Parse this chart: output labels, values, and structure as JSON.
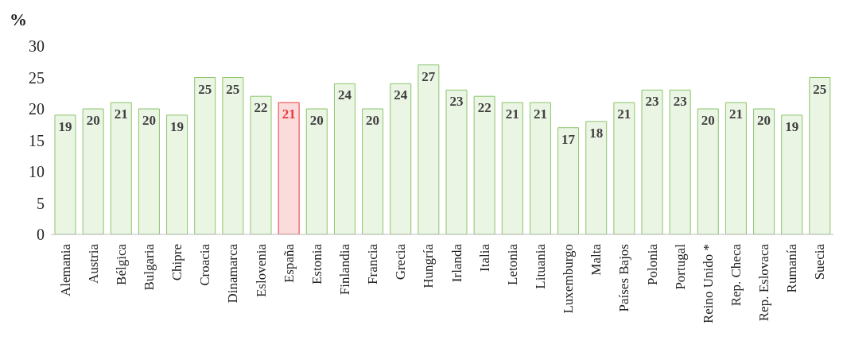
{
  "chart_data": {
    "type": "bar",
    "ylabel": "%",
    "categories": [
      "Alemania",
      "Austria",
      "Bélgica",
      "Bulgaria",
      "Chipre",
      "Croacia",
      "Dinamarca",
      "Eslovenia",
      "España",
      "Estonia",
      "Finlandia",
      "Francia",
      "Grecia",
      "Hungría",
      "Irlanda",
      "Italia",
      "Letonia",
      "Lituania",
      "Luxemburgo",
      "Malta",
      "Países Bajos",
      "Polonia",
      "Portugal",
      "Reino Unido *",
      "Rep. Checa",
      "Rep. Eslovaca",
      "Rumanía",
      "Suecia"
    ],
    "values": [
      19,
      20,
      21,
      20,
      19,
      25,
      25,
      22,
      21,
      20,
      24,
      20,
      24,
      27,
      23,
      22,
      21,
      21,
      17,
      18,
      21,
      23,
      23,
      20,
      21,
      20,
      19,
      25
    ],
    "color": "#8cc56b",
    "colors": [
      "#8cc56b",
      "#8cc56b",
      "#8cc56b",
      "#8cc56b",
      "#8cc56b",
      "#8cc56b",
      "#8cc56b",
      "#8cc56b",
      "#e8393a",
      "#8cc56b",
      "#8cc56b",
      "#8cc56b",
      "#8cc56b",
      "#8cc56b",
      "#8cc56b",
      "#8cc56b",
      "#8cc56b",
      "#8cc56b",
      "#8cc56b",
      "#8cc56b",
      "#8cc56b",
      "#8cc56b",
      "#8cc56b",
      "#8cc56b",
      "#8cc56b",
      "#8cc56b",
      "#8cc56b",
      "#8cc56b"
    ],
    "ylim": [
      0,
      30
    ],
    "yticks": [
      0,
      5,
      10,
      15,
      20,
      25,
      30
    ],
    "grid": false,
    "legend": false,
    "data_labels": true
  }
}
